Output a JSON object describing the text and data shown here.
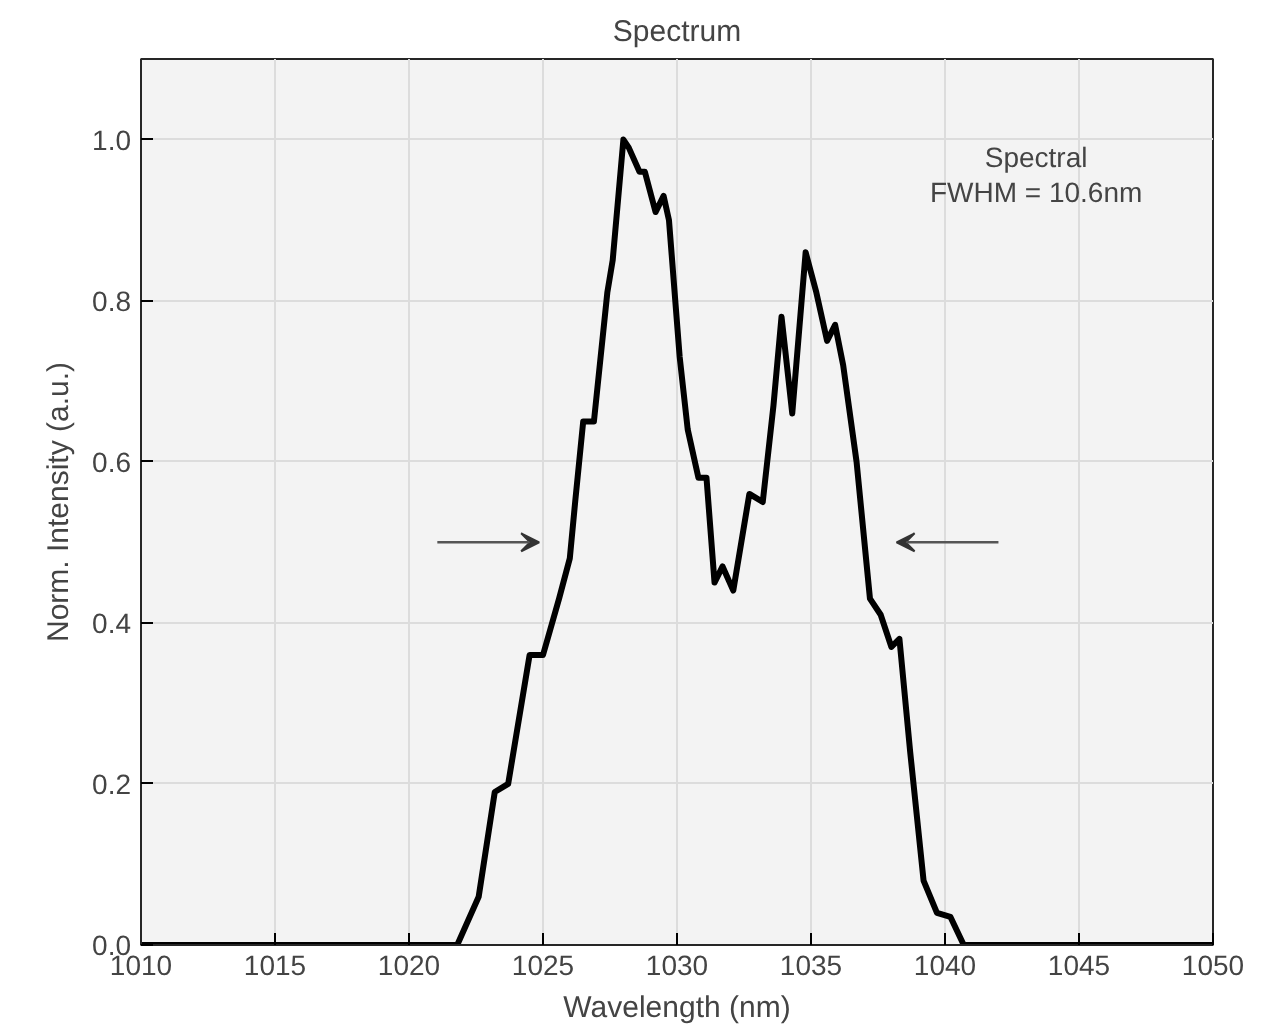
{
  "chart_data": {
    "type": "line",
    "title": "Spectrum",
    "xlabel": "Wavelength (nm)",
    "ylabel": "Norm. Intensity (a.u.)",
    "xlim": [
      1010,
      1050
    ],
    "ylim": [
      0,
      1.1
    ],
    "xticks": [
      1010,
      1015,
      1020,
      1025,
      1030,
      1035,
      1040,
      1045,
      1050
    ],
    "yticks": [
      {
        "value": 0,
        "label": "0.0"
      },
      {
        "value": 0.2,
        "label": "0.2"
      },
      {
        "value": 0.4,
        "label": "0.4"
      },
      {
        "value": 0.6,
        "label": "0.6"
      },
      {
        "value": 0.8,
        "label": "0.8"
      },
      {
        "value": 1.0,
        "label": "1.0"
      }
    ],
    "grid": true,
    "marker": "none",
    "line_style": "solid",
    "annotations": [
      "Spectral\nFWHM = 10.6nm"
    ],
    "series": [
      {
        "color": "#000000",
        "x": [
          1010,
          1021.8,
          1022.6,
          1023.2,
          1023.7,
          1024.5,
          1025.0,
          1025.6,
          1026.0,
          1026.2,
          1026.5,
          1026.9,
          1027.4,
          1027.6,
          1028.0,
          1028.2,
          1028.6,
          1028.8,
          1029.2,
          1029.5,
          1029.7,
          1030.1,
          1030.4,
          1030.8,
          1031.1,
          1031.4,
          1031.7,
          1032.1,
          1032.7,
          1033.2,
          1033.6,
          1033.9,
          1034.3,
          1034.8,
          1035.2,
          1035.6,
          1035.9,
          1036.2,
          1036.7,
          1037.2,
          1037.6,
          1038.0,
          1038.3,
          1038.7,
          1039.2,
          1039.7,
          1040.2,
          1040.7,
          1050
        ],
        "values": [
          0,
          0,
          0.06,
          0.19,
          0.2,
          0.36,
          0.36,
          0.43,
          0.48,
          0.55,
          0.65,
          0.65,
          0.81,
          0.85,
          1.0,
          0.99,
          0.96,
          0.96,
          0.91,
          0.93,
          0.9,
          0.73,
          0.64,
          0.58,
          0.58,
          0.45,
          0.47,
          0.44,
          0.56,
          0.55,
          0.67,
          0.78,
          0.66,
          0.86,
          0.81,
          0.75,
          0.77,
          0.72,
          0.6,
          0.43,
          0.41,
          0.37,
          0.38,
          0.24,
          0.08,
          0.04,
          0.035,
          0,
          0
        ]
      }
    ]
  }
}
